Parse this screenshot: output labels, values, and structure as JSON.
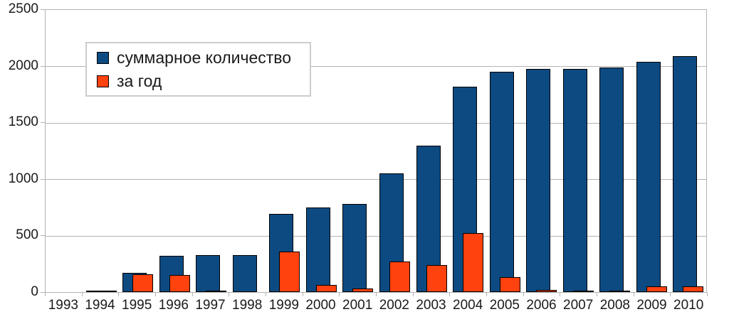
{
  "chart_data": {
    "type": "bar",
    "title": "",
    "xlabel": "",
    "ylabel": "",
    "categories": [
      "1993",
      "1994",
      "1995",
      "1996",
      "1997",
      "1998",
      "1999",
      "2000",
      "2001",
      "2002",
      "2003",
      "2004",
      "2005",
      "2006",
      "2007",
      "2008",
      "2009",
      "2010"
    ],
    "series": [
      {
        "name": "суммарное количество",
        "color": "#0d4a82",
        "values": [
          0,
          10,
          170,
          320,
          330,
          330,
          690,
          750,
          780,
          1050,
          1300,
          1820,
          1950,
          1975,
          1975,
          1990,
          2040,
          2090
        ]
      },
      {
        "name": "за год",
        "color": "#ff420e",
        "values": [
          0,
          10,
          160,
          150,
          15,
          0,
          360,
          60,
          30,
          270,
          240,
          520,
          130,
          20,
          10,
          15,
          50,
          50
        ]
      }
    ],
    "ylim": [
      0,
      2500
    ],
    "y_ticks": [
      0,
      500,
      1000,
      1500,
      2000,
      2500
    ],
    "grid": "horizontal",
    "legend_position": "top-left",
    "bar_layout": "overlapped"
  },
  "colors": {
    "background": "#ffffff",
    "grid": "#b3b3b3",
    "axis": "#b3b3b3",
    "text": "#1a1a1a",
    "bar_outline": "#000000",
    "legend_border": "#cccccc"
  }
}
